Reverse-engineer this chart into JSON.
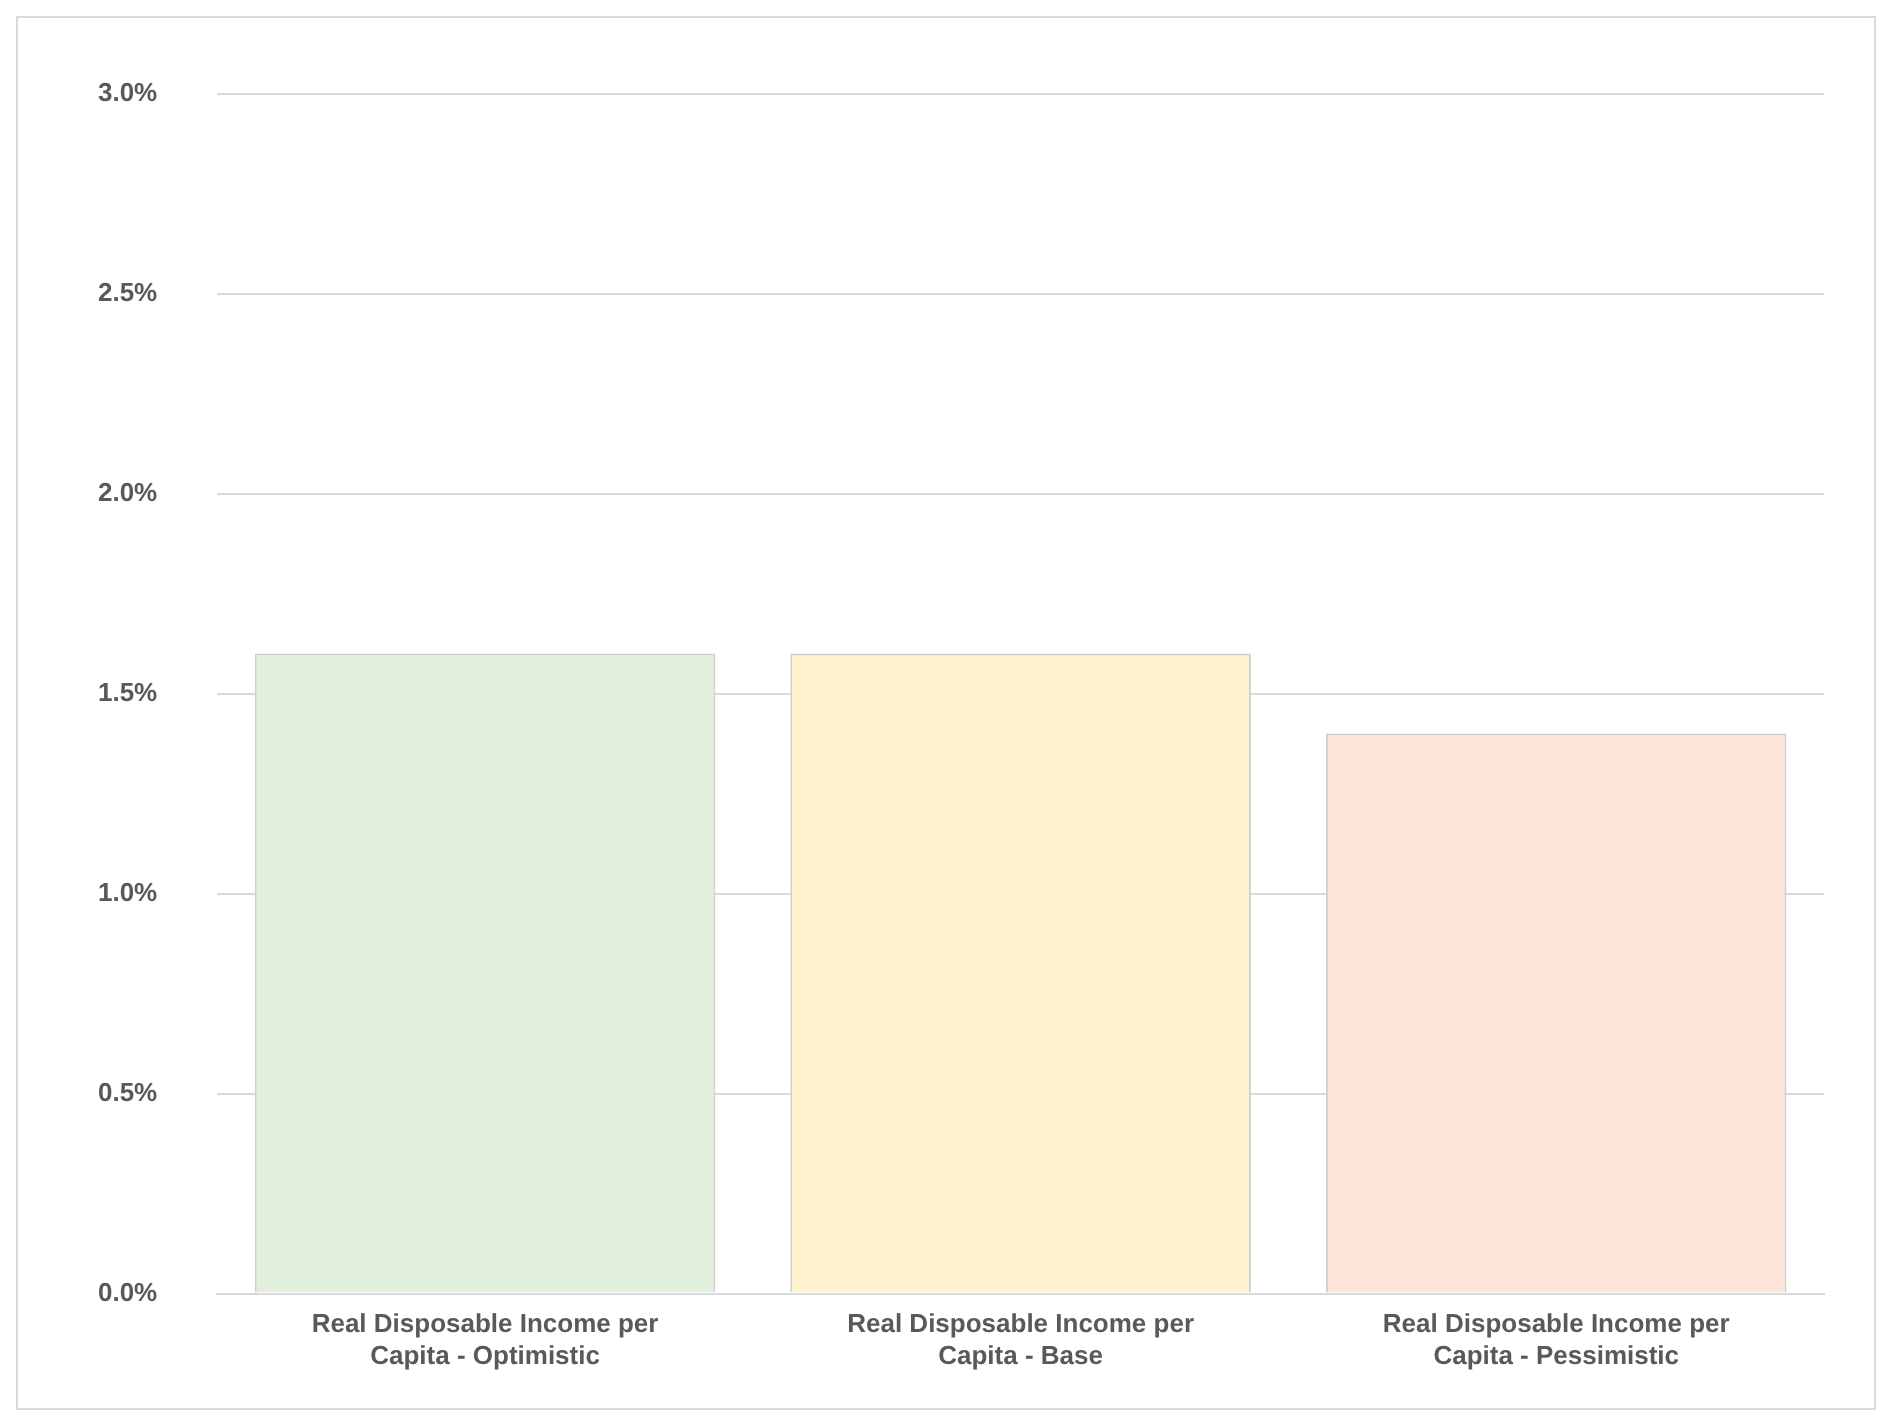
{
  "chart_data": {
    "type": "bar",
    "categories": [
      "Real Disposable Income per Capita - Optimistic",
      "Real Disposable Income per Capita - Base",
      "Real Disposable Income per Capita - Pessimistic"
    ],
    "values": [
      1.6,
      1.6,
      1.4
    ],
    "colors": [
      "#e2efda",
      "#fff2cc",
      "#fce4d6"
    ],
    "ylim": [
      0,
      3
    ],
    "yticks": [
      {
        "value": 0,
        "label": "0.0%"
      },
      {
        "value": 0.5,
        "label": "0.5%"
      },
      {
        "value": 1,
        "label": "1.0%"
      },
      {
        "value": 1.5,
        "label": "1.5%"
      },
      {
        "value": 2,
        "label": "2.0%"
      },
      {
        "value": 2.5,
        "label": "2.5%"
      },
      {
        "value": 3,
        "label": "3.0%"
      }
    ],
    "grid": "y",
    "legend": false
  }
}
